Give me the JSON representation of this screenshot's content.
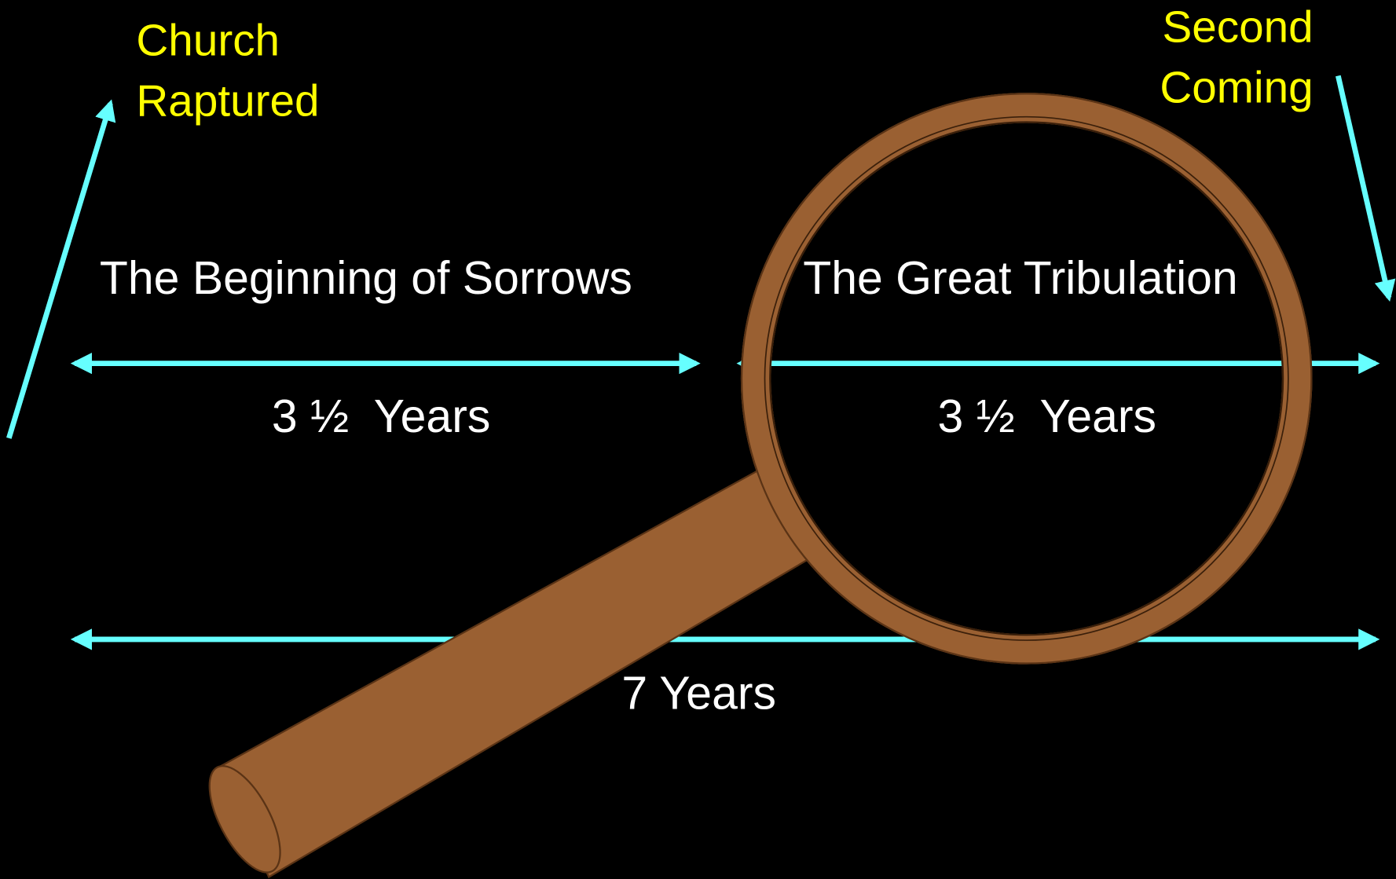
{
  "church_raptured": {
    "lines": [
      "Church",
      "Raptured"
    ]
  },
  "second_coming": {
    "lines": [
      "Second",
      "Coming"
    ]
  },
  "first_half": {
    "title": "The Beginning of Sorrows",
    "duration": "3 ½  Years"
  },
  "second_half": {
    "title": "The Great Tribulation",
    "duration": "3 ½  Years"
  },
  "total": {
    "duration": "7 Years"
  }
}
